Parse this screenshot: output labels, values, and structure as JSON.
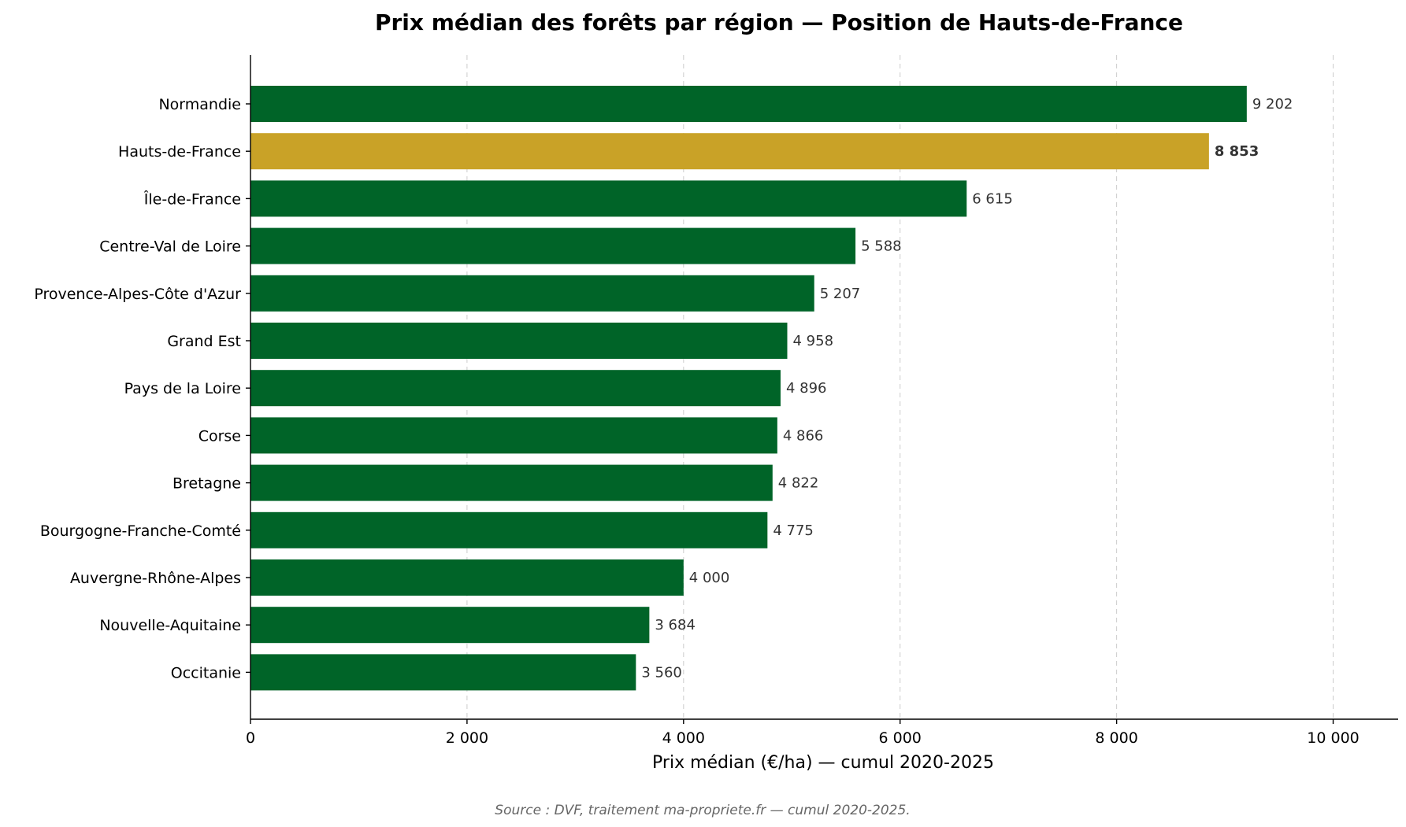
{
  "chart_data": {
    "type": "bar",
    "orientation": "horizontal",
    "title": "Prix médian des forêts par région — Position de Hauts-de-France",
    "xlabel": "Prix médian (€/ha) — cumul 2020-2025",
    "ylabel": "",
    "xlim": [
      0,
      10600
    ],
    "xticks": [
      0,
      2000,
      4000,
      6000,
      8000,
      10000
    ],
    "xtick_labels": [
      "0",
      "2 000",
      "4 000",
      "6 000",
      "8 000",
      "10 000"
    ],
    "grid": "x-dashed",
    "categories": [
      "Normandie",
      "Hauts-de-France",
      "Île-de-France",
      "Centre-Val de Loire",
      "Provence-Alpes-Côte d'Azur",
      "Grand Est",
      "Pays de la Loire",
      "Corse",
      "Bretagne",
      "Bourgogne-Franche-Comté",
      "Auvergne-Rhône-Alpes",
      "Nouvelle-Aquitaine",
      "Occitanie"
    ],
    "values": [
      9202,
      8853,
      6615,
      5588,
      5207,
      4958,
      4896,
      4866,
      4822,
      4775,
      4000,
      3684,
      3560
    ],
    "value_labels": [
      "9 202",
      "8 853",
      "6 615",
      "5 588",
      "5 207",
      "4 958",
      "4 896",
      "4 866",
      "4 822",
      "4 775",
      "4 000",
      "3 684",
      "3 560"
    ],
    "highlight": "Hauts-de-France",
    "colors": {
      "bar": "#006428",
      "highlight": "#c9a227",
      "value_text": "#333333"
    },
    "source": "Source : DVF, traitement ma-propriete.fr — cumul 2020-2025."
  }
}
